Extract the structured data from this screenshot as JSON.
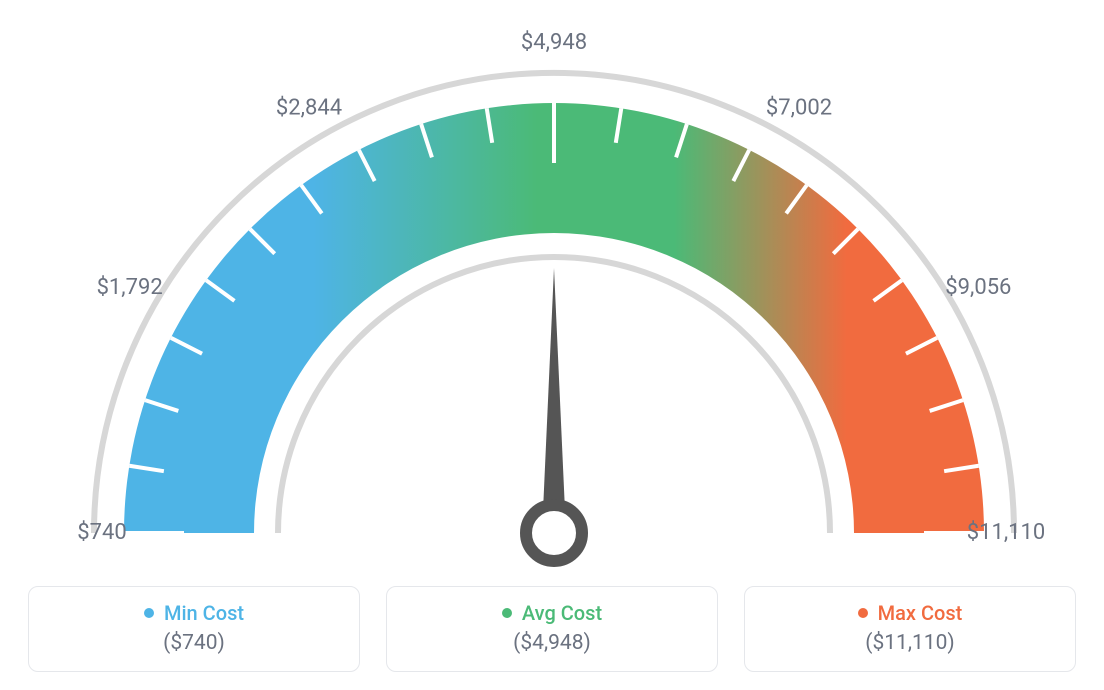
{
  "gauge": {
    "type": "gauge",
    "min_value": 740,
    "max_value": 11110,
    "value": 4948,
    "tick_labels": [
      "$740",
      "$1,792",
      "$2,844",
      "$4,948",
      "$7,002",
      "$9,056",
      "$11,110"
    ],
    "tick_angles_deg": [
      -180,
      -150,
      -120,
      -90,
      -60,
      -30,
      0
    ],
    "colors": {
      "min": "#4eb4e6",
      "avg": "#4bba77",
      "max": "#f16b3f",
      "outline": "#d7d7d7",
      "tick": "#ffffff",
      "needle": "#555555",
      "label_text": "#6b7280",
      "card_border": "#e5e7eb",
      "background": "#ffffff"
    },
    "dimensions": {
      "outer_radius": 460,
      "arc_inner_radius": 300,
      "arc_outer_radius": 430,
      "outline_width": 6,
      "tick_width": 4,
      "minor_tick_len": 35,
      "major_tick_len": 60,
      "label_radius": 490,
      "needle_len": 265
    }
  },
  "legend": {
    "items": [
      {
        "label": "Min Cost",
        "value": "($740)",
        "dot_color": "#4eb4e6",
        "text_color": "#4eb4e6"
      },
      {
        "label": "Avg Cost",
        "value": "($4,948)",
        "dot_color": "#4bba77",
        "text_color": "#4bba77"
      },
      {
        "label": "Max Cost",
        "value": "($11,110)",
        "dot_color": "#f16b3f",
        "text_color": "#f16b3f"
      }
    ]
  }
}
